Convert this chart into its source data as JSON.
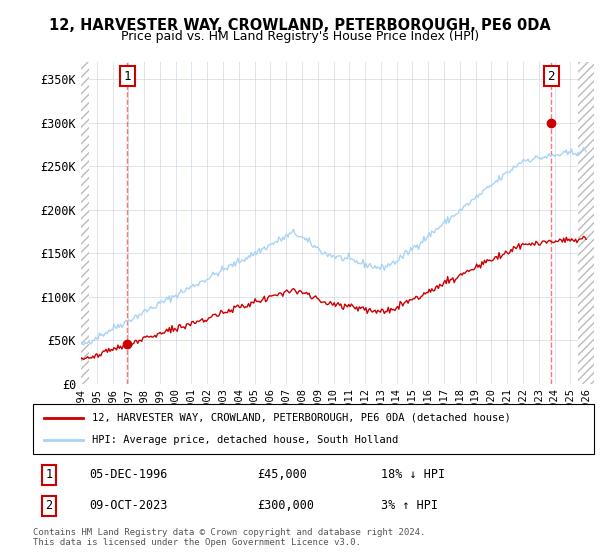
{
  "title1": "12, HARVESTER WAY, CROWLAND, PETERBOROUGH, PE6 0DA",
  "title2": "Price paid vs. HM Land Registry's House Price Index (HPI)",
  "ylim": [
    0,
    370000
  ],
  "xlim_start": 1994.0,
  "xlim_end": 2026.5,
  "yticks": [
    0,
    50000,
    100000,
    150000,
    200000,
    250000,
    300000,
    350000
  ],
  "ytick_labels": [
    "£0",
    "£50K",
    "£100K",
    "£150K",
    "£200K",
    "£250K",
    "£300K",
    "£350K"
  ],
  "xtick_years": [
    1994,
    1995,
    1996,
    1997,
    1998,
    1999,
    2000,
    2001,
    2002,
    2003,
    2004,
    2005,
    2006,
    2007,
    2008,
    2009,
    2010,
    2011,
    2012,
    2013,
    2014,
    2015,
    2016,
    2017,
    2018,
    2019,
    2020,
    2021,
    2022,
    2023,
    2024,
    2025,
    2026
  ],
  "hpi_color": "#aad4f5",
  "price_color": "#cc0000",
  "marker1_year": 1996.92,
  "marker1_price": 45000,
  "marker2_year": 2023.78,
  "marker2_price": 300000,
  "annotation1_label": "1",
  "annotation2_label": "2",
  "legend_line1": "12, HARVESTER WAY, CROWLAND, PETERBOROUGH, PE6 0DA (detached house)",
  "legend_line2": "HPI: Average price, detached house, South Holland",
  "table_row1": [
    "1",
    "05-DEC-1996",
    "£45,000",
    "18% ↓ HPI"
  ],
  "table_row2": [
    "2",
    "09-OCT-2023",
    "£300,000",
    "3% ↑ HPI"
  ],
  "footer": "Contains HM Land Registry data © Crown copyright and database right 2024.\nThis data is licensed under the Open Government Licence v3.0.",
  "grid_color": "#d0d8e8",
  "vline_color": "#ff6666",
  "hatch_left_end": 1994.5,
  "hatch_right_start": 2025.5
}
